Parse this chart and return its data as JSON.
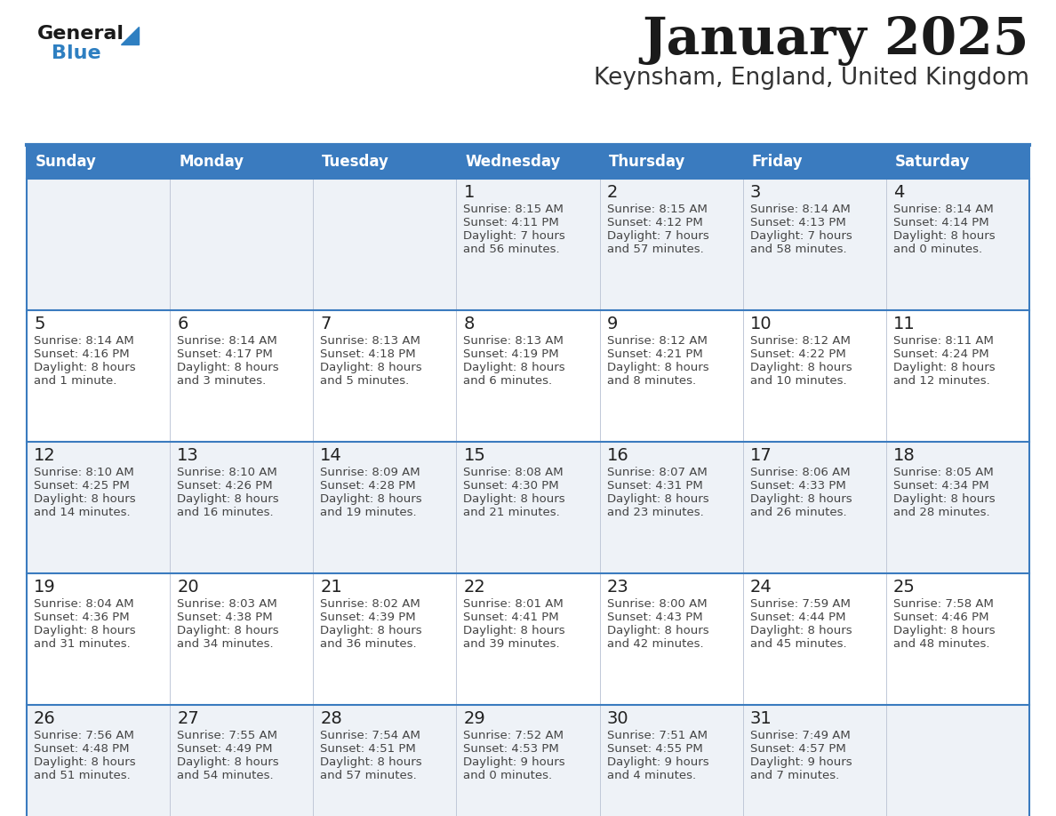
{
  "title": "January 2025",
  "subtitle": "Keynsham, England, United Kingdom",
  "header_bg": "#3a7bbf",
  "header_text": "#ffffff",
  "row_bg_odd": "#eef2f7",
  "row_bg_even": "#ffffff",
  "cell_border_color": "#3a7bbf",
  "inner_border_color": "#c0c8d8",
  "day_names": [
    "Sunday",
    "Monday",
    "Tuesday",
    "Wednesday",
    "Thursday",
    "Friday",
    "Saturday"
  ],
  "title_color": "#1a1a1a",
  "subtitle_color": "#333333",
  "day_number_color": "#222222",
  "cell_text_color": "#444444",
  "logo_general_color": "#1a1a1a",
  "logo_blue_color": "#2e7fc1",
  "calendar": [
    [
      null,
      null,
      null,
      {
        "day": 1,
        "sunrise": "8:15 AM",
        "sunset": "4:11 PM",
        "daylight": "7 hours and 56 minutes"
      },
      {
        "day": 2,
        "sunrise": "8:15 AM",
        "sunset": "4:12 PM",
        "daylight": "7 hours and 57 minutes"
      },
      {
        "day": 3,
        "sunrise": "8:14 AM",
        "sunset": "4:13 PM",
        "daylight": "7 hours and 58 minutes"
      },
      {
        "day": 4,
        "sunrise": "8:14 AM",
        "sunset": "4:14 PM",
        "daylight": "8 hours and 0 minutes"
      }
    ],
    [
      {
        "day": 5,
        "sunrise": "8:14 AM",
        "sunset": "4:16 PM",
        "daylight": "8 hours and 1 minute"
      },
      {
        "day": 6,
        "sunrise": "8:14 AM",
        "sunset": "4:17 PM",
        "daylight": "8 hours and 3 minutes"
      },
      {
        "day": 7,
        "sunrise": "8:13 AM",
        "sunset": "4:18 PM",
        "daylight": "8 hours and 5 minutes"
      },
      {
        "day": 8,
        "sunrise": "8:13 AM",
        "sunset": "4:19 PM",
        "daylight": "8 hours and 6 minutes"
      },
      {
        "day": 9,
        "sunrise": "8:12 AM",
        "sunset": "4:21 PM",
        "daylight": "8 hours and 8 minutes"
      },
      {
        "day": 10,
        "sunrise": "8:12 AM",
        "sunset": "4:22 PM",
        "daylight": "8 hours and 10 minutes"
      },
      {
        "day": 11,
        "sunrise": "8:11 AM",
        "sunset": "4:24 PM",
        "daylight": "8 hours and 12 minutes"
      }
    ],
    [
      {
        "day": 12,
        "sunrise": "8:10 AM",
        "sunset": "4:25 PM",
        "daylight": "8 hours and 14 minutes"
      },
      {
        "day": 13,
        "sunrise": "8:10 AM",
        "sunset": "4:26 PM",
        "daylight": "8 hours and 16 minutes"
      },
      {
        "day": 14,
        "sunrise": "8:09 AM",
        "sunset": "4:28 PM",
        "daylight": "8 hours and 19 minutes"
      },
      {
        "day": 15,
        "sunrise": "8:08 AM",
        "sunset": "4:30 PM",
        "daylight": "8 hours and 21 minutes"
      },
      {
        "day": 16,
        "sunrise": "8:07 AM",
        "sunset": "4:31 PM",
        "daylight": "8 hours and 23 minutes"
      },
      {
        "day": 17,
        "sunrise": "8:06 AM",
        "sunset": "4:33 PM",
        "daylight": "8 hours and 26 minutes"
      },
      {
        "day": 18,
        "sunrise": "8:05 AM",
        "sunset": "4:34 PM",
        "daylight": "8 hours and 28 minutes"
      }
    ],
    [
      {
        "day": 19,
        "sunrise": "8:04 AM",
        "sunset": "4:36 PM",
        "daylight": "8 hours and 31 minutes"
      },
      {
        "day": 20,
        "sunrise": "8:03 AM",
        "sunset": "4:38 PM",
        "daylight": "8 hours and 34 minutes"
      },
      {
        "day": 21,
        "sunrise": "8:02 AM",
        "sunset": "4:39 PM",
        "daylight": "8 hours and 36 minutes"
      },
      {
        "day": 22,
        "sunrise": "8:01 AM",
        "sunset": "4:41 PM",
        "daylight": "8 hours and 39 minutes"
      },
      {
        "day": 23,
        "sunrise": "8:00 AM",
        "sunset": "4:43 PM",
        "daylight": "8 hours and 42 minutes"
      },
      {
        "day": 24,
        "sunrise": "7:59 AM",
        "sunset": "4:44 PM",
        "daylight": "8 hours and 45 minutes"
      },
      {
        "day": 25,
        "sunrise": "7:58 AM",
        "sunset": "4:46 PM",
        "daylight": "8 hours and 48 minutes"
      }
    ],
    [
      {
        "day": 26,
        "sunrise": "7:56 AM",
        "sunset": "4:48 PM",
        "daylight": "8 hours and 51 minutes"
      },
      {
        "day": 27,
        "sunrise": "7:55 AM",
        "sunset": "4:49 PM",
        "daylight": "8 hours and 54 minutes"
      },
      {
        "day": 28,
        "sunrise": "7:54 AM",
        "sunset": "4:51 PM",
        "daylight": "8 hours and 57 minutes"
      },
      {
        "day": 29,
        "sunrise": "7:52 AM",
        "sunset": "4:53 PM",
        "daylight": "9 hours and 0 minutes"
      },
      {
        "day": 30,
        "sunrise": "7:51 AM",
        "sunset": "4:55 PM",
        "daylight": "9 hours and 4 minutes"
      },
      {
        "day": 31,
        "sunrise": "7:49 AM",
        "sunset": "4:57 PM",
        "daylight": "9 hours and 7 minutes"
      },
      null
    ]
  ]
}
